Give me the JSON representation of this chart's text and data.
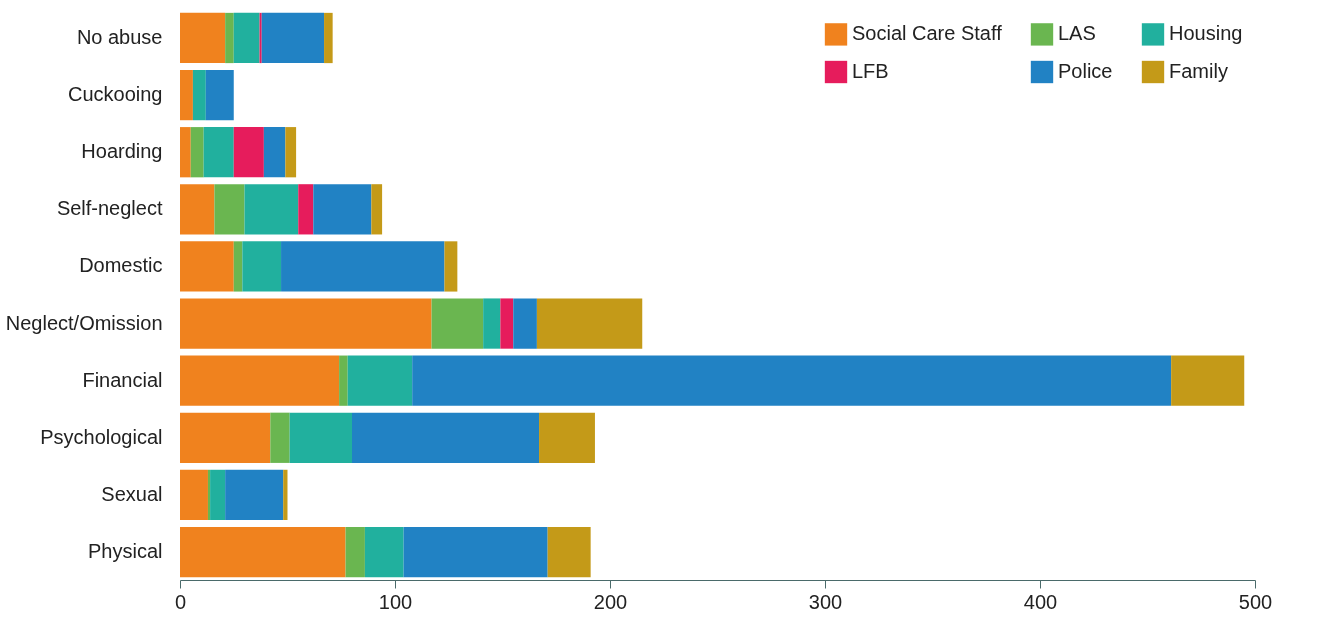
{
  "chart_data": {
    "type": "bar",
    "orientation": "horizontal",
    "stacked": true,
    "categories": [
      "No abuse",
      "Cuckooing",
      "Hoarding",
      "Self-neglect",
      "Domestic",
      "Neglect/Omission",
      "Financial",
      "Psychological",
      "Sexual",
      "Physical"
    ],
    "series": [
      {
        "name": "Social Care Staff",
        "color": "#f0821e",
        "values": [
          21,
          6,
          5,
          16,
          25,
          117,
          74,
          42,
          13,
          77
        ]
      },
      {
        "name": "LAS",
        "color": "#6ab650",
        "values": [
          4,
          0,
          6,
          14,
          4,
          24,
          4,
          9,
          1,
          9
        ]
      },
      {
        "name": "Housing",
        "color": "#21b09e",
        "values": [
          12,
          6,
          14,
          25,
          18,
          8,
          30,
          29,
          7,
          18
        ]
      },
      {
        "name": "LFB",
        "color": "#e61c5c",
        "values": [
          1,
          0,
          14,
          7,
          0,
          6,
          0,
          0,
          0,
          0
        ]
      },
      {
        "name": "Police",
        "color": "#2182c4",
        "values": [
          29,
          13,
          10,
          27,
          76,
          11,
          353,
          87,
          27,
          67
        ]
      },
      {
        "name": "Family",
        "color": "#c49a18",
        "values": [
          4,
          0,
          5,
          5,
          6,
          49,
          34,
          26,
          2,
          20
        ]
      }
    ],
    "xlim": [
      0,
      500
    ],
    "xticks": [
      0,
      100,
      200,
      300,
      400,
      500
    ],
    "grid": false,
    "legend": "top right"
  }
}
